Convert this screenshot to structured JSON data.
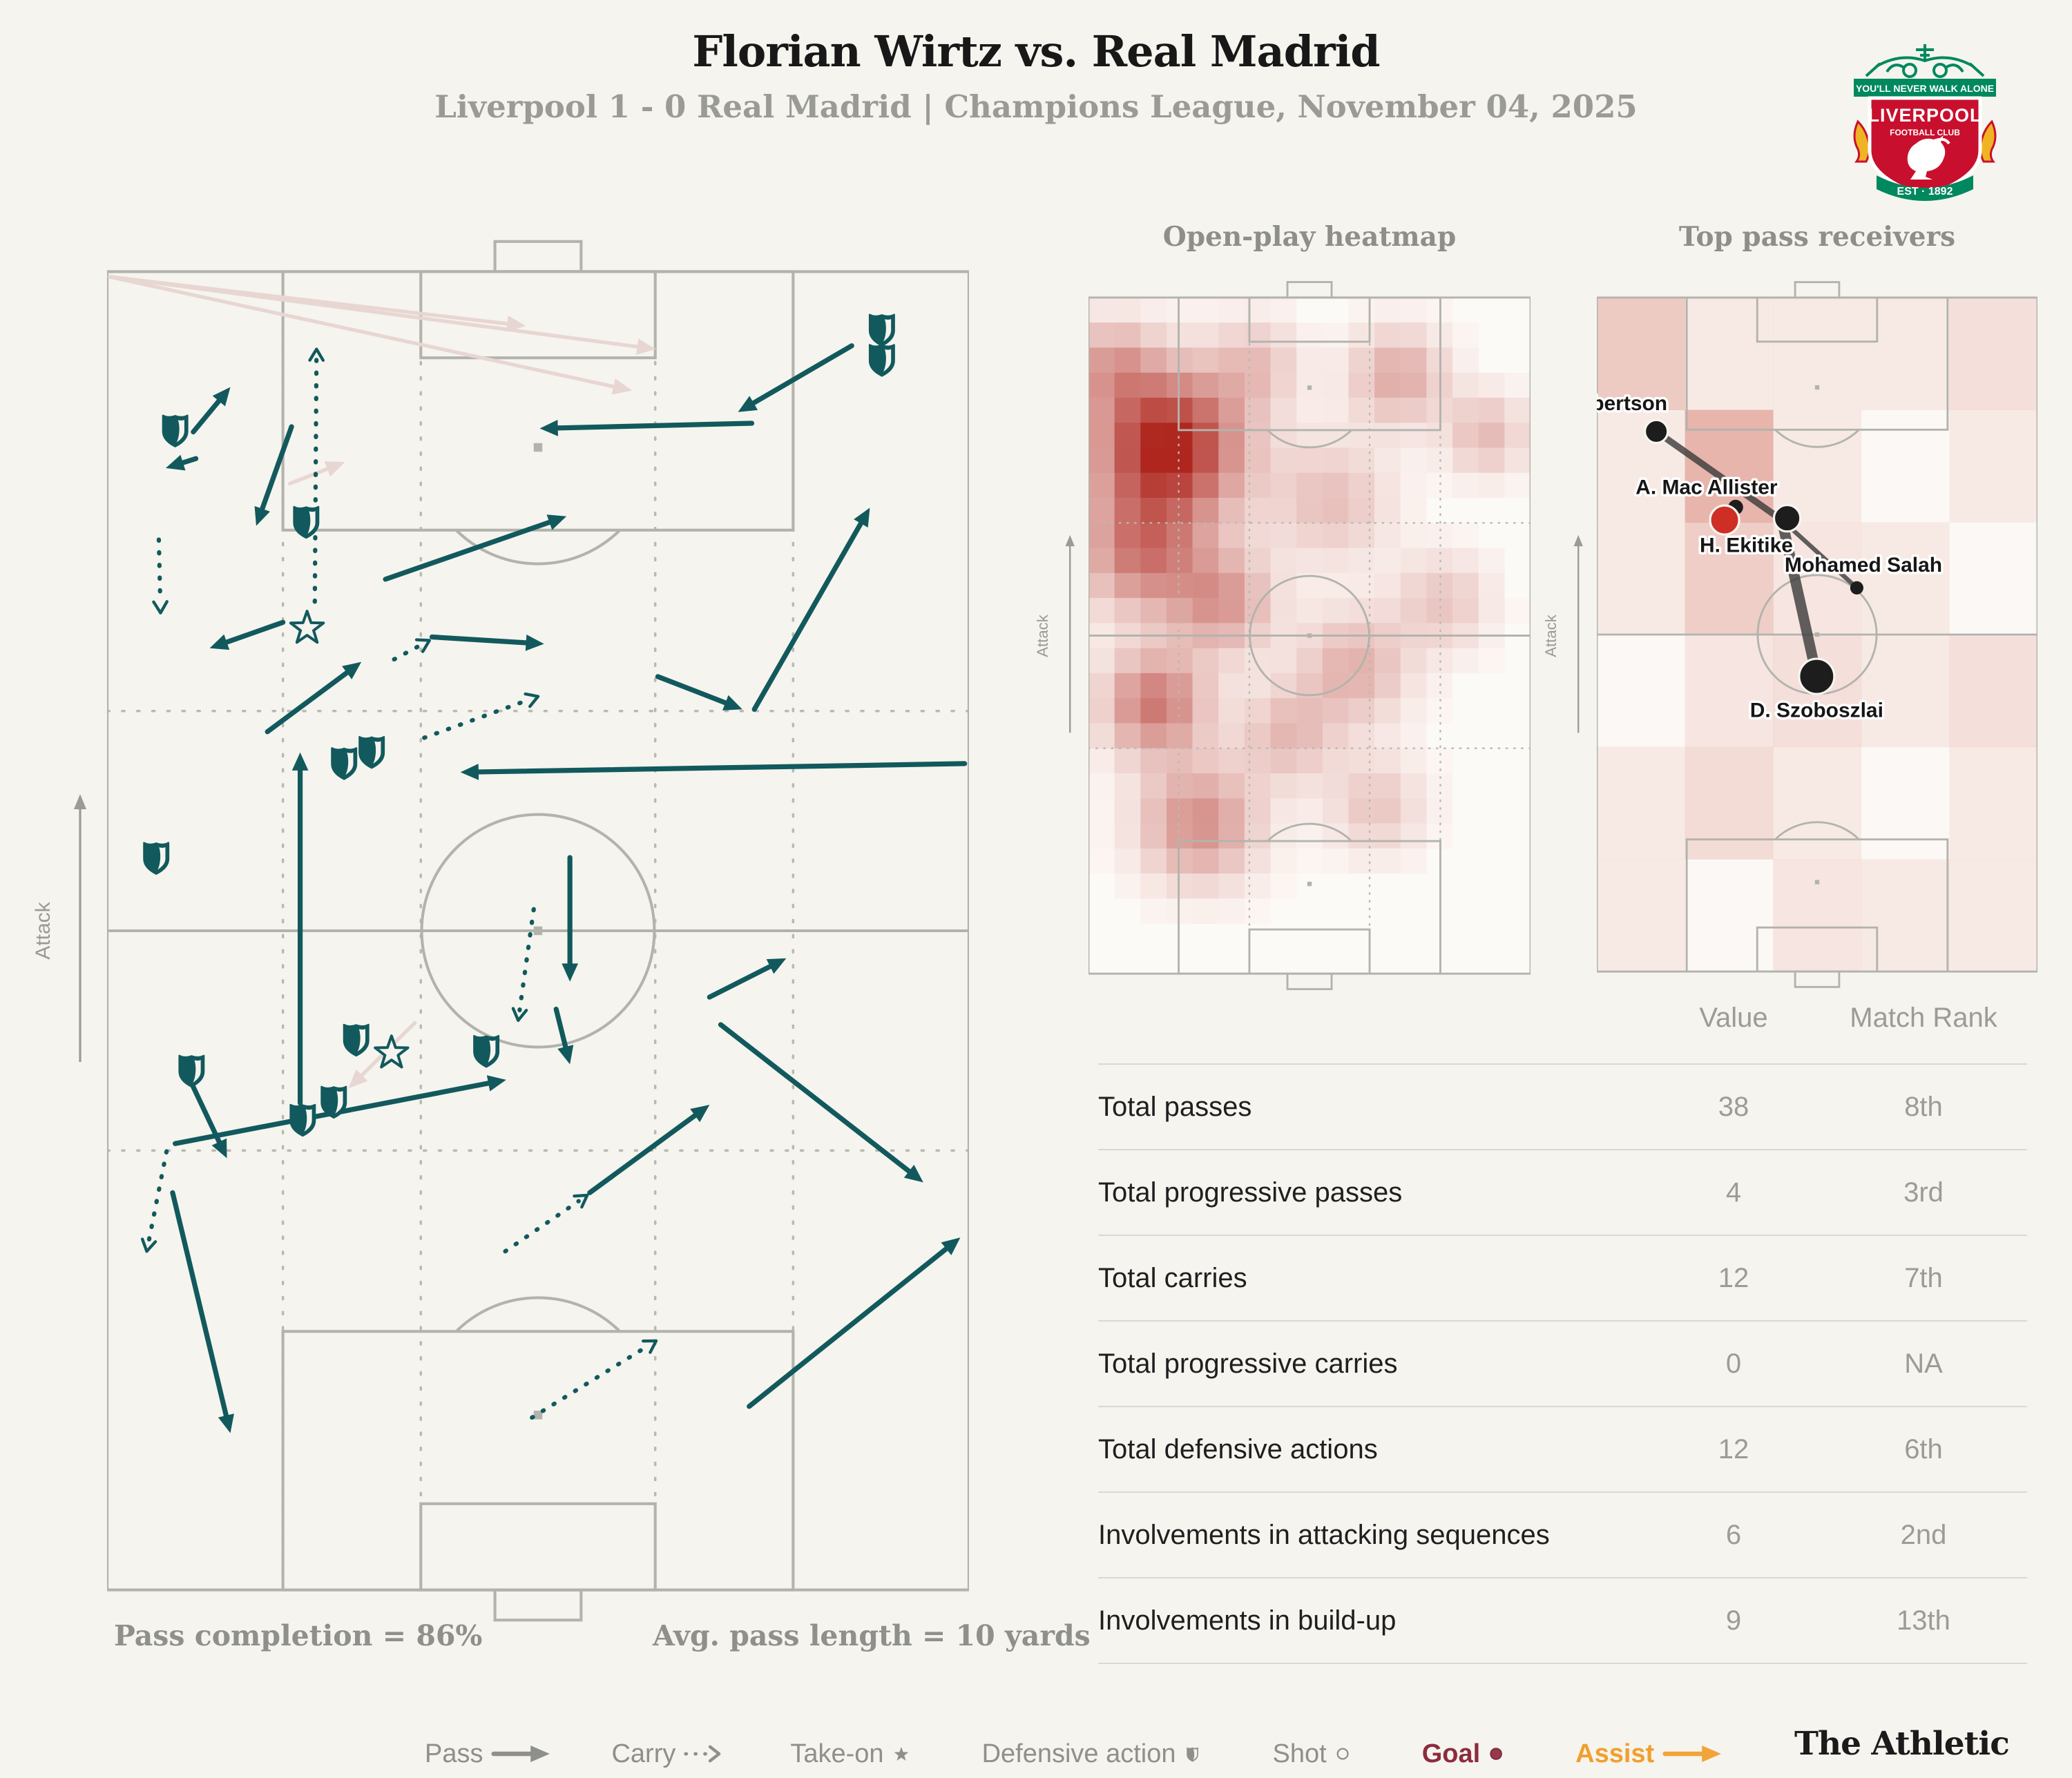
{
  "header": {
    "title": "Florian Wirtz vs. Real Madrid",
    "subtitle": "Liverpool 1 - 0 Real Madrid | Champions League, November 04, 2025"
  },
  "badge": {
    "banner_top": "YOU'LL NEVER WALK ALONE",
    "name_line1": "LIVERPOOL",
    "name_line2": "FOOTBALL CLUB",
    "est": "EST · 1892",
    "red": "#c8102e",
    "green": "#00885e",
    "gold": "#f0b323"
  },
  "panels": {
    "pitch_map": {
      "attack_label": "Attack",
      "pass_completion": "Pass completion = 86%",
      "avg_pass_length": "Avg. pass length = 10 yards"
    },
    "heatmap": {
      "title": "Open-play heatmap",
      "attack_label": "Attack"
    },
    "receivers": {
      "title": "Top pass receivers",
      "attack_label": "Attack"
    }
  },
  "table": {
    "value_header": "Value",
    "rank_header": "Match Rank",
    "rows": [
      {
        "label": "Total passes",
        "value": "38",
        "rank": "8th"
      },
      {
        "label": "Total progressive passes",
        "value": "4",
        "rank": "3rd"
      },
      {
        "label": "Total carries",
        "value": "12",
        "rank": "7th"
      },
      {
        "label": "Total progressive carries",
        "value": "0",
        "rank": "NA"
      },
      {
        "label": "Total defensive actions",
        "value": "12",
        "rank": "6th"
      },
      {
        "label": "Involvements in attacking sequences",
        "value": "6",
        "rank": "2nd"
      },
      {
        "label": "Involvements in build-up",
        "value": "9",
        "rank": "13th"
      }
    ]
  },
  "legend": {
    "items": [
      {
        "label": "Pass",
        "type": "arrow",
        "color": "#8f8f8c"
      },
      {
        "label": "Carry",
        "type": "carry",
        "color": "#8f8f8c"
      },
      {
        "label": "Take-on",
        "type": "star",
        "color": "#8f8f8c"
      },
      {
        "label": "Defensive action",
        "type": "shield",
        "color": "#8f8f8c"
      },
      {
        "label": "Shot",
        "type": "circle",
        "color": "#8f8f8c"
      },
      {
        "label": "Goal",
        "type": "goal",
        "color": "#8d2c3e"
      },
      {
        "label": "Assist",
        "type": "assist",
        "color": "#f09f2e"
      }
    ],
    "goal_fill": "#96394b",
    "goal_edge": "#7c2940",
    "assist_color": "#f2a43a"
  },
  "footer": {
    "brand": "The Athletic"
  },
  "colors": {
    "teal": "#12595d",
    "pink": "#e8d6d2",
    "pitch_line": "#b3b3ad",
    "zone_dot": "#b9b9b2",
    "heat_deep": [
      172,
      32,
      24
    ],
    "heat_base": [
      253,
      249,
      246
    ],
    "recv_heat": [
      198,
      74,
      58
    ]
  },
  "chart_data": {
    "type": "pass-map",
    "units": "pitch coords: x 0-100 (left-right), y 0-153 (top=opponent goal), attack direction = up",
    "pass_completion_pct": 86,
    "avg_pass_length_yards": 10,
    "pitch_events": {
      "passes": [
        [
          10.0,
          18.6,
          14.3,
          13.4
        ],
        [
          10.3,
          21.7,
          6.8,
          22.8
        ],
        [
          21.4,
          18.0,
          17.3,
          29.5
        ],
        [
          32.3,
          35.7,
          53.3,
          28.4
        ],
        [
          20.4,
          40.7,
          11.9,
          43.7
        ],
        [
          37.7,
          42.4,
          50.7,
          43.2
        ],
        [
          18.6,
          53.4,
          29.5,
          45.3
        ],
        [
          86.4,
          8.6,
          73.2,
          16.3
        ],
        [
          74.8,
          17.6,
          50.2,
          18.2
        ],
        [
          99.5,
          57.1,
          41.0,
          58.1
        ],
        [
          22.4,
          96.5,
          22.4,
          55.8
        ],
        [
          53.7,
          68.0,
          53.7,
          82.4
        ],
        [
          69.9,
          84.2,
          78.8,
          79.7
        ],
        [
          71.2,
          87.4,
          94.7,
          105.7
        ],
        [
          56.0,
          106.9,
          69.9,
          96.7
        ],
        [
          7.9,
          101.2,
          46.3,
          93.8
        ],
        [
          9.8,
          94.2,
          13.9,
          102.9
        ],
        [
          7.6,
          106.9,
          14.3,
          134.8
        ],
        [
          52.1,
          85.6,
          53.7,
          92.0
        ],
        [
          74.5,
          131.7,
          99.0,
          112.1
        ],
        [
          63.9,
          47.0,
          73.7,
          50.8
        ],
        [
          75.1,
          50.8,
          88.5,
          27.4
        ]
      ],
      "incomplete_passes": [
        [
          0.3,
          0.6,
          63.7,
          9.0
        ],
        [
          0.3,
          0.6,
          60.9,
          13.8
        ],
        [
          0.3,
          0.6,
          48.6,
          6.3
        ],
        [
          35.7,
          87.2,
          28.0,
          94.8
        ],
        [
          21.2,
          24.6,
          27.6,
          22.1
        ]
      ],
      "carries": [
        [
          24.1,
          38.3,
          24.3,
          9.0
        ],
        [
          33.3,
          45.0,
          37.4,
          42.8
        ],
        [
          36.8,
          54.1,
          50.0,
          49.3
        ],
        [
          49.5,
          74.0,
          47.7,
          86.9
        ],
        [
          6.9,
          102.1,
          4.6,
          113.7
        ],
        [
          46.2,
          113.7,
          55.7,
          107.2
        ],
        [
          6.0,
          31.1,
          6.2,
          39.6
        ],
        [
          49.3,
          133.0,
          63.7,
          124.1
        ]
      ],
      "defensive_actions": [
        [
          7.9,
          18.4
        ],
        [
          23.1,
          29.0
        ],
        [
          89.9,
          6.7
        ],
        [
          89.9,
          10.2
        ],
        [
          27.5,
          57.0
        ],
        [
          30.7,
          55.7
        ],
        [
          5.7,
          68.0
        ],
        [
          9.8,
          92.7
        ],
        [
          22.7,
          98.4
        ],
        [
          28.9,
          89.1
        ],
        [
          44.0,
          90.4
        ],
        [
          26.3,
          96.3
        ]
      ],
      "take_ons": [
        [
          23.2,
          41.4
        ],
        [
          33.0,
          90.7
        ]
      ]
    },
    "heatmap_blobs": [
      [
        18,
        33.7,
        20,
        1.0
      ],
      [
        12,
        58,
        16,
        0.55
      ],
      [
        30,
        69,
        14,
        0.45
      ],
      [
        15,
        92,
        14,
        0.6
      ],
      [
        25,
        119,
        16,
        0.5
      ],
      [
        55,
        46,
        16,
        0.28
      ],
      [
        70,
        18,
        13,
        0.38
      ],
      [
        60,
        84,
        15,
        0.35
      ],
      [
        80,
        69,
        13,
        0.25
      ],
      [
        45,
        99,
        13,
        0.3
      ],
      [
        65,
        115,
        13,
        0.25
      ],
      [
        90,
        31,
        11,
        0.3
      ],
      [
        38,
        15,
        12,
        0.25
      ],
      [
        5,
        15,
        12,
        0.35
      ]
    ],
    "receivers": {
      "grid": [
        [
          0.28,
          0.1,
          0.1,
          0.1,
          0.16
        ],
        [
          0.1,
          0.4,
          0.1,
          0.02,
          0.1
        ],
        [
          0.1,
          0.26,
          0.13,
          0.1,
          0.02
        ],
        [
          0.02,
          0.13,
          0.16,
          0.1,
          0.16
        ],
        [
          0.1,
          0.18,
          0.1,
          0.02,
          0.1
        ],
        [
          0.1,
          0.02,
          0.13,
          0.1,
          0.1
        ]
      ],
      "hub": [
        42.0,
        50.5
      ],
      "players": [
        {
          "name": "A. Robertson",
          "x": 13.5,
          "y": 30.4,
          "r": 2.6,
          "color": "#1d1d1d",
          "lx": 16.0,
          "ly": 25.6,
          "anchor": "end",
          "line_w": 1.5
        },
        {
          "name": "A. Mac Allister",
          "x": 29.0,
          "y": 50.5,
          "r": 3.3,
          "color": "#cf2e24",
          "lx": 41.0,
          "ly": 44.6,
          "anchor": "end",
          "line_w": 0
        },
        {
          "name": "H. Ekitike",
          "x": 43.2,
          "y": 50.1,
          "r": 3.0,
          "color": "#1d1d1d",
          "lx": 44.5,
          "ly": 57.8,
          "anchor": "end",
          "line_w": 0
        },
        {
          "name": "Mohamed Salah",
          "x": 59.0,
          "y": 65.9,
          "r": 1.5,
          "color": "#1d1d1d",
          "lx": 60.5,
          "ly": 62.2,
          "anchor": "middle",
          "line_w": 1.0
        },
        {
          "name": "D. Szoboszlai",
          "x": 49.9,
          "y": 86.0,
          "r": 4.0,
          "color": "#1d1d1d",
          "lx": 49.9,
          "ly": 95.2,
          "anchor": "middle",
          "line_w": 2.4
        }
      ]
    },
    "stats": [
      {
        "metric": "Total passes",
        "value": 38,
        "match_rank": "8th"
      },
      {
        "metric": "Total progressive passes",
        "value": 4,
        "match_rank": "3rd"
      },
      {
        "metric": "Total carries",
        "value": 12,
        "match_rank": "7th"
      },
      {
        "metric": "Total progressive carries",
        "value": 0,
        "match_rank": "NA"
      },
      {
        "metric": "Total defensive actions",
        "value": 12,
        "match_rank": "6th"
      },
      {
        "metric": "Involvements in attacking sequences",
        "value": 6,
        "match_rank": "2nd"
      },
      {
        "metric": "Involvements in build-up",
        "value": 9,
        "match_rank": "13th"
      }
    ]
  }
}
